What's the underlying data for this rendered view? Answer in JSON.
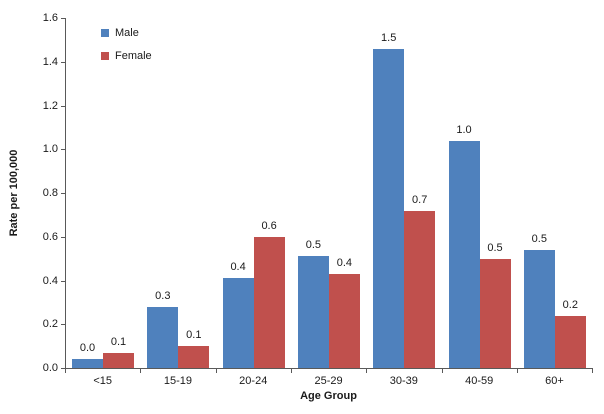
{
  "chart_data": {
    "type": "bar",
    "title": "",
    "xlabel": "Age Group",
    "ylabel": "Rate per 100,000",
    "categories": [
      "<15",
      "15-19",
      "20-24",
      "25-29",
      "30-39",
      "40-59",
      "60+"
    ],
    "series": [
      {
        "name": "Male",
        "color": "#4f81bd",
        "values": [
          0.04,
          0.28,
          0.41,
          0.51,
          1.46,
          1.04,
          0.54
        ],
        "labels": [
          "0.0",
          "0.3",
          "0.4",
          "0.5",
          "1.5",
          "1.0",
          "0.5"
        ]
      },
      {
        "name": "Female",
        "color": "#c0504d",
        "values": [
          0.07,
          0.1,
          0.6,
          0.43,
          0.72,
          0.5,
          0.24
        ],
        "labels": [
          "0.1",
          "0.1",
          "0.6",
          "0.4",
          "0.7",
          "0.5",
          "0.2"
        ]
      }
    ],
    "ylim": [
      0,
      1.6
    ],
    "ytick_step": 0.2,
    "grid": false,
    "legend_position": "top-left-inside",
    "axis_color": "#595959"
  }
}
